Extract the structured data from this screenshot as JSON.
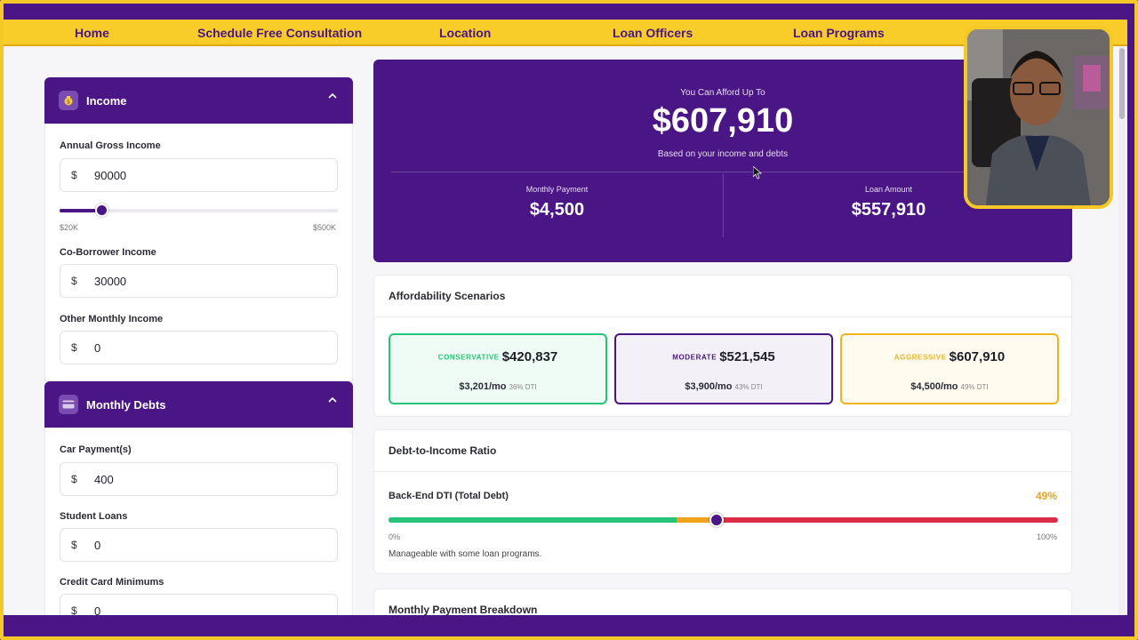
{
  "nav": {
    "items": [
      "Home",
      "Schedule Free Consultation",
      "Location",
      "Loan Officers",
      "Loan Programs"
    ]
  },
  "income": {
    "title": "Income",
    "icon": "money-bag-icon",
    "annual_label": "Annual Gross Income",
    "annual_value": "90000",
    "currency": "$",
    "slider_min": "$20K",
    "slider_max": "$500K",
    "slider_fraction": 0.15,
    "coborrower_label": "Co-Borrower Income",
    "coborrower_value": "30000",
    "other_label": "Other Monthly Income",
    "other_value": "0"
  },
  "debts": {
    "title": "Monthly Debts",
    "icon": "credit-card-icon",
    "car_label": "Car Payment(s)",
    "car_value": "400",
    "student_label": "Student Loans",
    "student_value": "0",
    "credit_label": "Credit Card Minimums",
    "credit_value": "0"
  },
  "hero": {
    "afford_label": "You Can Afford Up To",
    "afford_value": "$607,910",
    "afford_sub": "Based on your income and debts",
    "monthly_label": "Monthly Payment",
    "monthly_value": "$4,500",
    "loan_label": "Loan Amount",
    "loan_value": "$557,910"
  },
  "scenarios": {
    "title": "Affordability Scenarios",
    "items": [
      {
        "tag": "CONSERVATIVE",
        "amount": "$420,837",
        "monthly": "$3,201/mo",
        "dti": "36% DTI",
        "color": "#27c37a",
        "bg": "#effcf5"
      },
      {
        "tag": "MODERATE",
        "amount": "$521,545",
        "monthly": "$3,900/mo",
        "dti": "43% DTI",
        "color": "#4a1585",
        "bg": "#f3f0f8"
      },
      {
        "tag": "AGGRESSIVE",
        "amount": "$607,910",
        "monthly": "$4,500/mo",
        "dti": "49% DTI",
        "color": "#f0b41d",
        "bg": "#fffbef"
      }
    ]
  },
  "dti": {
    "title": "Debt-to-Income Ratio",
    "label": "Back-End DTI (Total Debt)",
    "value": "49%",
    "value_fraction": 0.49,
    "min": "0%",
    "max": "100%",
    "note": "Manageable with some loan programs."
  },
  "breakdown": {
    "title": "Monthly Payment Breakdown"
  },
  "colors": {
    "brand_purple": "#4a1585",
    "accent_yellow": "#f8cd2a"
  }
}
